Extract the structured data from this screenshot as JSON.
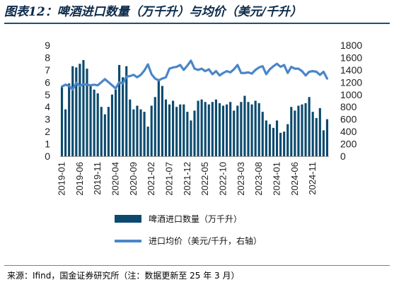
{
  "title": "图表12：啤酒进口数量（万千升）与均价（美元/千升）",
  "source": "来源：Ifind，国金证券研究所（注：数据更新至 25 年 3 月）",
  "colors": {
    "bar": "#0b4a6e",
    "line": "#4a86c8",
    "title": "#0b2a4a",
    "rule": "#1f4e79"
  },
  "chart_data": {
    "type": "bar-line",
    "categories": [
      "2019-01",
      "2019-02",
      "2019-03",
      "2019-04",
      "2019-05",
      "2019-06",
      "2019-07",
      "2019-08",
      "2019-09",
      "2019-10",
      "2019-11",
      "2019-12",
      "2020-01",
      "2020-02",
      "2020-03",
      "2020-04",
      "2020-05",
      "2020-06",
      "2020-07",
      "2020-08",
      "2020-09",
      "2020-10",
      "2020-11",
      "2020-12",
      "2021-01",
      "2021-02",
      "2021-03",
      "2021-04",
      "2021-05",
      "2021-06",
      "2021-07",
      "2021-08",
      "2021-09",
      "2021-10",
      "2021-11",
      "2021-12",
      "2022-01",
      "2022-02",
      "2022-03",
      "2022-04",
      "2022-05",
      "2022-06",
      "2022-07",
      "2022-08",
      "2022-09",
      "2022-10",
      "2022-11",
      "2022-12",
      "2023-01",
      "2023-02",
      "2023-03",
      "2023-04",
      "2023-05",
      "2023-06",
      "2023-07",
      "2023-08",
      "2023-09",
      "2023-10",
      "2023-11",
      "2023-12",
      "2024-01",
      "2024-02",
      "2024-03",
      "2024-04",
      "2024-05",
      "2024-06",
      "2024-07",
      "2024-08",
      "2024-09",
      "2024-10",
      "2024-11",
      "2024-12",
      "2025-01",
      "2025-02",
      "2025-03"
    ],
    "x_tick_labels": [
      "2019-01",
      "2019-06",
      "2019-11",
      "2020-04",
      "2020-09",
      "2021-02",
      "2021-07",
      "2021-12",
      "2022-05",
      "2022-10",
      "2023-03",
      "2023-08",
      "2024-01",
      "2024-06",
      "2024-11"
    ],
    "series": [
      {
        "name": "啤酒进口数量（万千升）",
        "type": "bar",
        "axis": "left",
        "values": [
          5.6,
          3.8,
          5.9,
          7.3,
          7.2,
          7.5,
          7.8,
          7.1,
          5.7,
          5.4,
          5.1,
          4.0,
          3.4,
          4.0,
          5.0,
          5.4,
          7.4,
          6.4,
          7.3,
          4.6,
          3.8,
          4.1,
          3.8,
          3.6,
          2.4,
          4.1,
          4.8,
          6.2,
          5.7,
          4.6,
          4.2,
          4.5,
          4.0,
          4.2,
          4.2,
          3.6,
          2.9,
          3.7,
          4.5,
          4.6,
          4.4,
          4.2,
          4.4,
          4.6,
          4.3,
          4.1,
          4.2,
          4.4,
          3.7,
          4.1,
          4.4,
          4.9,
          4.4,
          4.2,
          4.5,
          4.3,
          3.6,
          2.9,
          2.6,
          2.3,
          2.9,
          1.9,
          2.0,
          2.6,
          4.0,
          3.7,
          4.1,
          4.2,
          4.3,
          4.8,
          3.6,
          3.1,
          3.9,
          2.1,
          3.0
        ]
      },
      {
        "name": "进口均价（美元/千升，右轴）",
        "type": "line",
        "axis": "right",
        "values": [
          1130,
          1160,
          1140,
          1080,
          1190,
          1140,
          1170,
          1160,
          1150,
          1160,
          1150,
          1200,
          1250,
          1200,
          1150,
          1100,
          1200,
          1180,
          1290,
          1300,
          1320,
          1280,
          1320,
          1390,
          1490,
          1330,
          1260,
          1230,
          1260,
          1280,
          1420,
          1440,
          1450,
          1480,
          1400,
          1470,
          1550,
          1420,
          1400,
          1420,
          1380,
          1410,
          1330,
          1380,
          1310,
          1350,
          1380,
          1360,
          1410,
          1480,
          1350,
          1350,
          1360,
          1340,
          1400,
          1440,
          1460,
          1330,
          1410,
          1460,
          1500,
          1450,
          1480,
          1350,
          1450,
          1420,
          1420,
          1380,
          1310,
          1370,
          1380,
          1370,
          1320,
          1370,
          1260
        ]
      }
    ],
    "y_left": {
      "min": 0,
      "max": 9,
      "ticks": [
        0,
        1,
        2,
        3,
        4,
        5,
        6,
        7,
        8,
        9
      ]
    },
    "y_right": {
      "min": 0,
      "max": 1800,
      "ticks": [
        0,
        200,
        400,
        600,
        800,
        1000,
        1200,
        1400,
        1600,
        1800
      ]
    },
    "legend_position": "bottom",
    "grid": false
  }
}
